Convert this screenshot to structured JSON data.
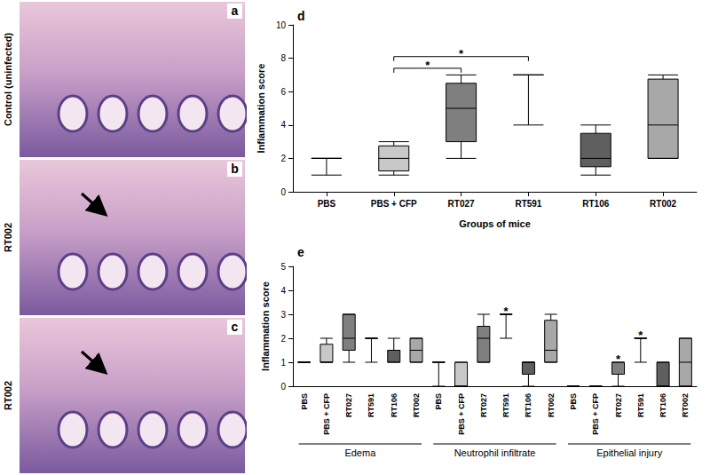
{
  "images": [
    {
      "letter": "a",
      "label": "Control (uninfected)",
      "arrow": false
    },
    {
      "letter": "b",
      "label": "RT002",
      "arrow": true
    },
    {
      "letter": "c",
      "label": "RT002",
      "arrow": true
    }
  ],
  "chart_data": [
    {
      "type": "boxplot",
      "letter": "d",
      "x_label": "Groups of mice",
      "y_label": "Inflammation score",
      "categories": [
        "PBS",
        "PBS + CFP",
        "RT027",
        "RT591",
        "RT106",
        "RT002"
      ],
      "values": [
        [
          1,
          2,
          2,
          2,
          2
        ],
        [
          1,
          1.25,
          2,
          2.75,
          3
        ],
        [
          2,
          3,
          5,
          6.5,
          7
        ],
        [
          4,
          7,
          7,
          7,
          7
        ],
        [
          1,
          1.5,
          2,
          3.5,
          4
        ],
        [
          2,
          2,
          4,
          6.75,
          7
        ]
      ],
      "colors": [
        "#ffffff",
        "#c8c8c8",
        "#7f7f7f",
        "#d0d0d0",
        "#5f5f5f",
        "#a8a8a8"
      ],
      "significance": [
        {
          "from": "PBS + CFP",
          "to": "RT591",
          "y": 8.1,
          "text": "*"
        },
        {
          "from": "PBS + CFP",
          "to": "RT027",
          "y": 7.4,
          "text": "*"
        }
      ],
      "ylim": [
        0,
        10
      ],
      "yticks": [
        0,
        2,
        4,
        6,
        8,
        10
      ],
      "grid": false
    },
    {
      "type": "boxplot",
      "letter": "e",
      "y_label": "Inflammation score",
      "categories": [
        "PBS",
        "PBS + CFP",
        "RT027",
        "RT591",
        "RT106",
        "RT002"
      ],
      "colors": [
        "#ffffff",
        "#c8c8c8",
        "#7f7f7f",
        "#d0d0d0",
        "#5f5f5f",
        "#a8a8a8"
      ],
      "groups": [
        {
          "name": "Edema",
          "values": [
            [
              1,
              1,
              1,
              1,
              1
            ],
            [
              1,
              1,
              1,
              1.75,
              2
            ],
            [
              1,
              1.5,
              2,
              3,
              3
            ],
            [
              1,
              2,
              2,
              2,
              2
            ],
            [
              1,
              1,
              1.5,
              1.5,
              2
            ],
            [
              1,
              1,
              1.5,
              2,
              2
            ]
          ],
          "annotations": []
        },
        {
          "name": "Neutrophil infiltrate",
          "values": [
            [
              0,
              1,
              1,
              1,
              1
            ],
            [
              0,
              0,
              0,
              1,
              1
            ],
            [
              1,
              1,
              2,
              2.5,
              3
            ],
            [
              2,
              3,
              3,
              3,
              3
            ],
            [
              0,
              0.5,
              1,
              1,
              1
            ],
            [
              1,
              1,
              1.5,
              2.75,
              3
            ]
          ],
          "annotations": [
            {
              "category": "RT591",
              "text": "*"
            }
          ]
        },
        {
          "name": "Epithelial injury",
          "values": [
            [
              0,
              0,
              0,
              0,
              0
            ],
            [
              0,
              0,
              0,
              0,
              0
            ],
            [
              0,
              0.5,
              0.5,
              1,
              1
            ],
            [
              1,
              2,
              2,
              2,
              2
            ],
            [
              0,
              0,
              0,
              1,
              1
            ],
            [
              0,
              0,
              1,
              2,
              2
            ]
          ],
          "annotations": [
            {
              "category": "RT027",
              "text": "*"
            },
            {
              "category": "RT591",
              "text": "*"
            }
          ]
        }
      ],
      "ylim": [
        0,
        5
      ],
      "yticks": [
        0,
        1,
        2,
        3,
        4,
        5
      ],
      "grid": false
    }
  ]
}
